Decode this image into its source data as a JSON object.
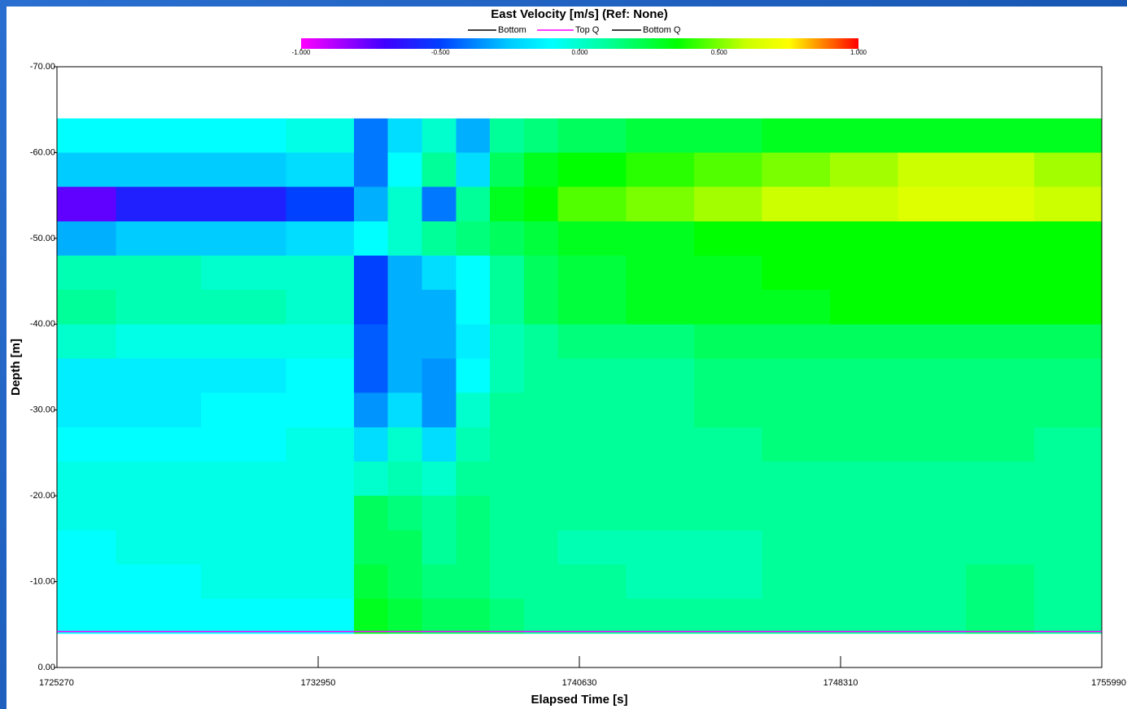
{
  "chart_data": {
    "type": "heatmap",
    "title": "East Velocity [m/s] (Ref: None)",
    "x_label": "Elapsed Time [s]",
    "y_label": "Depth [m]",
    "xlim": [
      1725270,
      1755990
    ],
    "xticks": [
      1725270,
      1732950,
      1740630,
      1748310,
      1755990
    ],
    "ylim": [
      0,
      -70
    ],
    "yticks": [
      {
        "value": -70,
        "label": "-70.00"
      },
      {
        "value": -60,
        "label": "-60.00"
      },
      {
        "value": -50,
        "label": "-50.00"
      },
      {
        "value": -40,
        "label": "-40.00"
      },
      {
        "value": -30,
        "label": "-30.00"
      },
      {
        "value": -20,
        "label": "-20.00"
      },
      {
        "value": -10,
        "label": "-10.00"
      },
      {
        "value": 0,
        "label": "0.00"
      }
    ],
    "clim": [
      -1,
      1
    ],
    "cticks": [
      {
        "value": -1,
        "label": "-1.000"
      },
      {
        "value": -0.5,
        "label": "-0.500"
      },
      {
        "value": 0,
        "label": "0.000"
      },
      {
        "value": 0.5,
        "label": "0.500"
      },
      {
        "value": 1,
        "label": "1.000"
      }
    ],
    "colorscale": [
      {
        "value": -1,
        "color": "#ff00ff"
      },
      {
        "value": -0.7,
        "color": "#4000ff"
      },
      {
        "value": -0.5,
        "color": "#0040ff"
      },
      {
        "value": -0.25,
        "color": "#00ccff"
      },
      {
        "value": -0.1,
        "color": "#00ffff"
      },
      {
        "value": 0.1,
        "color": "#00ff99"
      },
      {
        "value": 0.35,
        "color": "#00ff00"
      },
      {
        "value": 0.6,
        "color": "#ccff00"
      },
      {
        "value": 0.75,
        "color": "#ffff00"
      },
      {
        "value": 1,
        "color": "#ff0000"
      }
    ],
    "x_edges": [
      1725270,
      1727000,
      1729500,
      1732000,
      1734000,
      1735000,
      1736000,
      1737000,
      1738000,
      1739000,
      1740000,
      1742000,
      1744000,
      1746000,
      1748000,
      1750000,
      1752000,
      1754000,
      1755990
    ],
    "y_edges": [
      -64,
      -60,
      -56,
      -52,
      -48,
      -44,
      -40,
      -36,
      -32,
      -28,
      -24,
      -20,
      -16,
      -12,
      -8,
      -4
    ],
    "z": [
      [
        -0.1,
        -0.1,
        -0.1,
        -0.05,
        -0.4,
        -0.2,
        0.0,
        -0.3,
        0.1,
        0.15,
        0.2,
        0.25,
        0.25,
        0.3,
        0.3,
        0.3,
        0.3,
        0.3
      ],
      [
        -0.25,
        -0.25,
        -0.25,
        -0.2,
        -0.4,
        -0.1,
        0.1,
        -0.2,
        0.2,
        0.3,
        0.35,
        0.4,
        0.45,
        0.5,
        0.55,
        0.6,
        0.6,
        0.55
      ],
      [
        -0.75,
        -0.6,
        -0.6,
        -0.5,
        -0.3,
        0.0,
        -0.4,
        0.1,
        0.3,
        0.35,
        0.45,
        0.5,
        0.55,
        0.6,
        0.6,
        0.65,
        0.65,
        0.6
      ],
      [
        -0.3,
        -0.25,
        -0.25,
        -0.2,
        -0.1,
        0.0,
        0.1,
        0.15,
        0.2,
        0.25,
        0.3,
        0.3,
        0.35,
        0.35,
        0.35,
        0.35,
        0.35,
        0.35
      ],
      [
        0.05,
        0.05,
        0.0,
        0.0,
        -0.5,
        -0.3,
        -0.2,
        -0.1,
        0.1,
        0.2,
        0.25,
        0.3,
        0.3,
        0.35,
        0.35,
        0.35,
        0.35,
        0.35
      ],
      [
        0.1,
        0.05,
        0.05,
        0.0,
        -0.5,
        -0.3,
        -0.3,
        -0.1,
        0.1,
        0.2,
        0.25,
        0.3,
        0.3,
        0.3,
        0.35,
        0.35,
        0.35,
        0.35
      ],
      [
        0.0,
        -0.05,
        -0.05,
        -0.05,
        -0.45,
        -0.3,
        -0.3,
        -0.15,
        0.05,
        0.1,
        0.15,
        0.15,
        0.2,
        0.2,
        0.2,
        0.2,
        0.2,
        0.2
      ],
      [
        -0.15,
        -0.15,
        -0.15,
        -0.1,
        -0.45,
        -0.3,
        -0.35,
        -0.1,
        0.05,
        0.1,
        0.1,
        0.1,
        0.15,
        0.15,
        0.15,
        0.15,
        0.15,
        0.15
      ],
      [
        -0.15,
        -0.15,
        -0.1,
        -0.1,
        -0.35,
        -0.2,
        -0.35,
        0.0,
        0.1,
        0.1,
        0.1,
        0.1,
        0.15,
        0.15,
        0.15,
        0.15,
        0.15,
        0.15
      ],
      [
        -0.1,
        -0.1,
        -0.1,
        -0.05,
        -0.2,
        0.0,
        -0.2,
        0.05,
        0.1,
        0.1,
        0.1,
        0.1,
        0.1,
        0.15,
        0.15,
        0.15,
        0.15,
        0.1
      ],
      [
        -0.05,
        -0.05,
        -0.05,
        -0.05,
        0.0,
        0.05,
        0.0,
        0.1,
        0.1,
        0.1,
        0.1,
        0.1,
        0.1,
        0.1,
        0.1,
        0.1,
        0.1,
        0.1
      ],
      [
        -0.05,
        -0.05,
        -0.05,
        -0.05,
        0.2,
        0.15,
        0.1,
        0.15,
        0.1,
        0.1,
        0.1,
        0.1,
        0.1,
        0.1,
        0.1,
        0.1,
        0.1,
        0.1
      ],
      [
        -0.1,
        -0.05,
        -0.05,
        -0.05,
        0.2,
        0.2,
        0.1,
        0.15,
        0.1,
        0.1,
        0.05,
        0.05,
        0.05,
        0.1,
        0.1,
        0.1,
        0.1,
        0.1
      ],
      [
        -0.1,
        -0.1,
        -0.05,
        -0.05,
        0.25,
        0.2,
        0.15,
        0.15,
        0.1,
        0.1,
        0.1,
        0.05,
        0.05,
        0.1,
        0.1,
        0.1,
        0.15,
        0.1
      ],
      [
        -0.1,
        -0.1,
        -0.1,
        -0.1,
        0.3,
        0.25,
        0.2,
        0.2,
        0.15,
        0.1,
        0.1,
        0.1,
        0.1,
        0.1,
        0.1,
        0.1,
        0.15,
        0.1
      ]
    ],
    "lines": [
      {
        "name": "Bottom",
        "color": "#000000"
      },
      {
        "name": "Top Q",
        "color": "#ff00ff",
        "x": [
          1725270,
          1755990
        ],
        "values": [
          -4.2,
          -4.2
        ]
      },
      {
        "name": "Bottom Q",
        "color": "#000000"
      }
    ]
  }
}
